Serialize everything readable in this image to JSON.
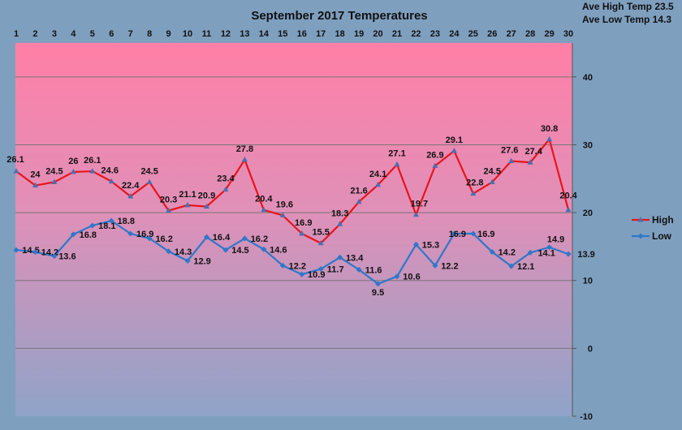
{
  "chart_data": {
    "type": "line",
    "title": "September 2017 Temperatures",
    "annotations": {
      "ave_high": "Ave High Temp 23.5",
      "ave_low": "Ave Low Temp 14.3"
    },
    "x": [
      1,
      2,
      3,
      4,
      5,
      6,
      7,
      8,
      9,
      10,
      11,
      12,
      13,
      14,
      15,
      16,
      17,
      18,
      19,
      20,
      21,
      22,
      23,
      24,
      25,
      26,
      27,
      28,
      29,
      30
    ],
    "ylim": [
      -10,
      45
    ],
    "yticks": [
      -10,
      0,
      10,
      20,
      30,
      40
    ],
    "grid": true,
    "legend_position": "right",
    "series": [
      {
        "name": "High",
        "color": "#e8141c",
        "marker_color": "#4a6fb0",
        "values": [
          26.1,
          24,
          24.5,
          26,
          26.1,
          24.6,
          22.4,
          24.5,
          20.3,
          21.1,
          20.9,
          23.4,
          27.8,
          20.4,
          19.6,
          16.9,
          15.5,
          18.3,
          21.6,
          24.1,
          27.1,
          19.7,
          26.9,
          29.1,
          22.8,
          24.5,
          27.6,
          27.4,
          30.8,
          20.4
        ]
      },
      {
        "name": "Low",
        "color": "#2f77c8",
        "marker_color": "#2f77c8",
        "values": [
          14.5,
          14.2,
          13.6,
          16.8,
          18.1,
          18.8,
          16.9,
          16.2,
          14.3,
          12.9,
          16.4,
          14.5,
          16.2,
          14.6,
          12.2,
          10.9,
          11.7,
          13.4,
          11.6,
          9.5,
          10.6,
          15.3,
          12.2,
          16.9,
          16.9,
          14.2,
          12.1,
          14.1,
          14.9,
          13.9
        ]
      }
    ]
  }
}
